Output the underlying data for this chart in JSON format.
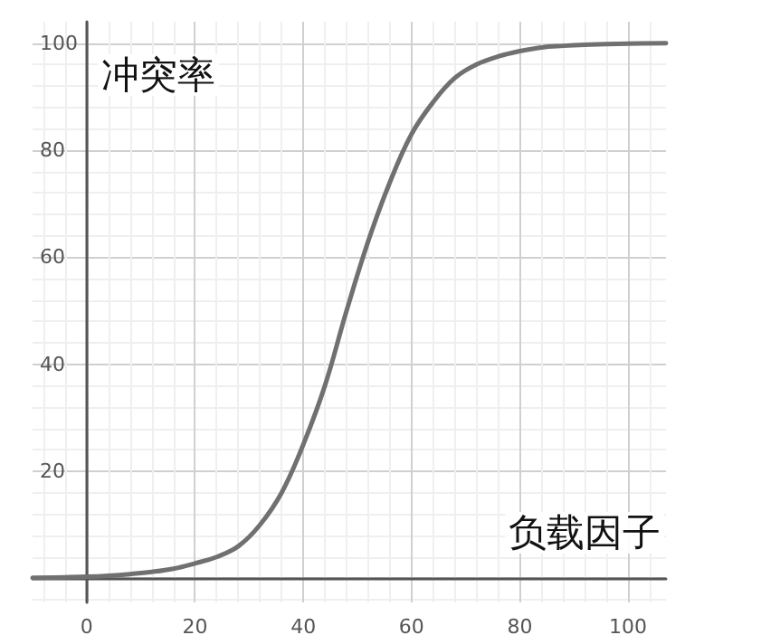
{
  "chart_data": {
    "type": "line",
    "xlabel": "负载因子",
    "ylabel": "冲突率",
    "x": [
      -10,
      -4,
      0,
      4,
      8,
      12,
      16,
      20,
      24,
      28,
      32,
      36,
      40,
      44,
      48,
      52,
      56,
      60,
      64,
      68,
      72,
      76,
      80,
      84,
      88,
      92,
      96,
      100,
      107
    ],
    "series": [
      {
        "color": "#707070",
        "values": [
          0.1,
          0.2,
          0.3,
          0.5,
          0.8,
          1.2,
          1.8,
          2.8,
          4,
          6,
          10,
          16,
          25,
          36,
          50,
          63,
          74,
          83,
          89,
          93.5,
          96,
          97.5,
          98.5,
          99.2,
          99.5,
          99.7,
          99.8,
          99.9,
          100
        ]
      }
    ],
    "xlim": [
      -10,
      107
    ],
    "ylim": [
      -4.5,
      104
    ],
    "xticks": [
      0,
      20,
      40,
      60,
      80,
      100
    ],
    "yticks": [
      {
        "value": 0,
        "label": null
      },
      20,
      40,
      60,
      80,
      100
    ],
    "grid": true,
    "marker": "none",
    "line_style": "solid"
  }
}
